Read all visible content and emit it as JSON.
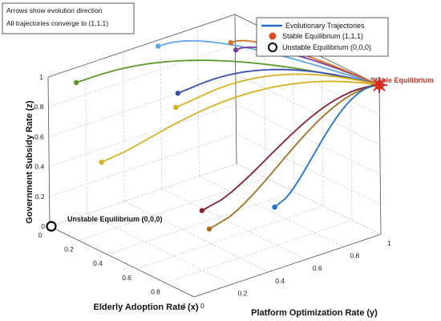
{
  "chart_data": {
    "type": "line",
    "dimensions": 3,
    "axes": {
      "x": {
        "label": "Elderly Adoption Rate (x)",
        "ticks": [
          "0",
          "0.2",
          "0.4",
          "0.6",
          "0.8",
          "1"
        ],
        "range": [
          0,
          1
        ]
      },
      "y": {
        "label": "Platform Optimization Rate (y)",
        "ticks": [
          "0",
          "0.2",
          "0.4",
          "0.6",
          "0.8",
          "1"
        ],
        "range": [
          0,
          1
        ]
      },
      "z": {
        "label": "Government Subsidy Rate (z)",
        "ticks": [
          "0",
          "0.2",
          "0.4",
          "0.6",
          "0.8",
          "1"
        ],
        "range": [
          0,
          1
        ]
      }
    },
    "grid": true,
    "legend": {
      "placement": "top-right",
      "entries": [
        {
          "label": "Evolutionary Trajectories",
          "marker": "line",
          "color": "#1f6fd1"
        },
        {
          "label": "Stable Equilibrium (1,1,1)",
          "marker": "filled-circle",
          "color": "#d9501e"
        },
        {
          "label": "Unstable Equilibrium (0,0,0)",
          "marker": "open-circle",
          "color": "#000000"
        }
      ]
    },
    "note": {
      "placement": "top-left",
      "lines": [
        "Arrows show evolution direction",
        "All trajectories converge to (1,1,1)"
      ]
    },
    "annotations": {
      "stable": {
        "text": "Stable Equilibrium",
        "point": [
          1,
          1,
          1
        ],
        "color": "#d62728"
      },
      "unstable": {
        "text": "Unstable Equilibrium (0,0,0)",
        "point": [
          0,
          0,
          0
        ]
      }
    },
    "series": [
      {
        "color": "#5fa8e8",
        "start": [
          0.05,
          0.55,
          1.0
        ]
      },
      {
        "color": "#7a3fa0",
        "start": [
          0.2,
          0.85,
          0.92
        ]
      },
      {
        "color": "#d9702a",
        "start": [
          0.1,
          0.9,
          0.9
        ]
      },
      {
        "color": "#5a9a2a",
        "start": [
          0.0,
          0.15,
          0.9
        ]
      },
      {
        "color": "#3a4fb0",
        "start": [
          0.25,
          0.5,
          0.8
        ]
      },
      {
        "color": "#d9b020",
        "start": [
          0.3,
          0.45,
          0.75
        ]
      },
      {
        "color": "#d9b020",
        "start": [
          0.3,
          0.05,
          0.55
        ]
      },
      {
        "color": "#8a2030",
        "start": [
          0.8,
          0.2,
          0.4
        ]
      },
      {
        "color": "#a07020",
        "start": [
          0.85,
          0.2,
          0.3
        ]
      },
      {
        "color": "#1f6fd1",
        "start": [
          0.85,
          0.55,
          0.3
        ]
      }
    ]
  }
}
